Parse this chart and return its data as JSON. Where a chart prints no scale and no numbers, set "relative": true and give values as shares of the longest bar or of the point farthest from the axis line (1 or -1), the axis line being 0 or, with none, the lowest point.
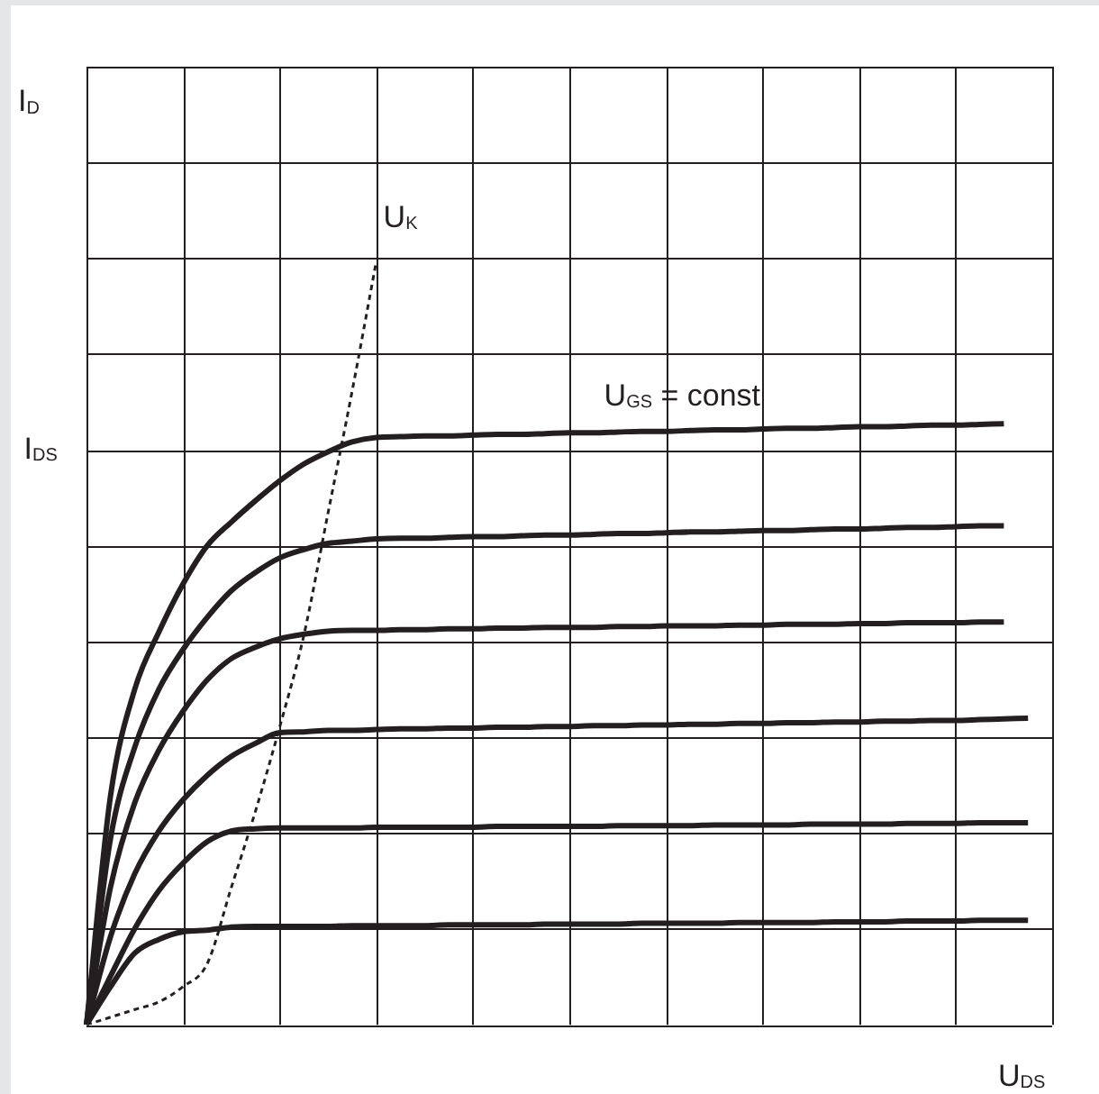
{
  "chart_data": {
    "type": "line",
    "relative": true,
    "grid": true,
    "legend": false,
    "marker": "none",
    "line_style": "solid",
    "ylabel": "I$_{D}$",
    "xlabel": "U$_{DS}$",
    "annotations": [
      "U$_{GS}$ = const",
      "I$_{DS}$"
    ],
    "categories": [
      null,
      null,
      null,
      null,
      null,
      null,
      null,
      null,
      null,
      null,
      null,
      null,
      null,
      null,
      null,
      null,
      null,
      null,
      null,
      null,
      null,
      null,
      null,
      null,
      null,
      null,
      null,
      null,
      null,
      null,
      null,
      null,
      null,
      null,
      null,
      null,
      null,
      null,
      null,
      null,
      null
    ],
    "series": [
      {
        "color": "#231f20",
        "values": [
          0,
          0.301,
          0.44,
          0.515,
          0.578,
          0.628,
          0.659,
          0.687,
          0.713,
          0.735,
          0.751,
          0.764,
          0.77,
          0.771,
          0.772,
          0.772,
          0.773,
          0.774,
          0.774,
          0.775,
          0.776,
          0.776,
          0.777,
          0.778,
          0.778,
          0.779,
          0.78,
          0.78,
          0.781,
          0.782,
          0.782,
          0.783,
          0.784,
          0.784,
          0.785,
          0.786,
          0.786,
          0.787,
          0.788,
          null,
          null
        ]
      },
      {
        "color": "#231f20",
        "values": [
          0,
          0.245,
          0.364,
          0.44,
          0.492,
          0.534,
          0.569,
          0.593,
          0.612,
          0.623,
          0.631,
          0.634,
          0.637,
          0.638,
          0.638,
          0.639,
          0.64,
          0.64,
          0.641,
          0.642,
          0.642,
          0.643,
          0.644,
          0.644,
          0.645,
          0.646,
          0.646,
          0.647,
          0.648,
          0.648,
          0.649,
          0.65,
          0.65,
          0.651,
          0.652,
          0.652,
          0.653,
          0.654,
          0.654,
          null,
          null
        ]
      },
      {
        "color": "#231f20",
        "values": [
          0,
          0.181,
          0.291,
          0.36,
          0.411,
          0.452,
          0.48,
          0.495,
          0.506,
          0.512,
          0.516,
          0.517,
          0.517,
          0.518,
          0.518,
          0.519,
          0.519,
          0.52,
          0.52,
          0.521,
          0.521,
          0.521,
          0.522,
          0.522,
          0.523,
          0.523,
          0.523,
          0.524,
          0.524,
          0.525,
          0.525,
          0.525,
          0.526,
          0.526,
          0.527,
          0.527,
          0.527,
          0.528,
          0.528,
          null,
          null
        ]
      },
      {
        "color": "#231f20",
        "values": [
          0,
          0.116,
          0.198,
          0.254,
          0.295,
          0.327,
          0.352,
          0.369,
          0.383,
          0.384,
          0.386,
          0.386,
          0.387,
          0.388,
          0.388,
          0.389,
          0.389,
          0.39,
          0.39,
          0.391,
          0.391,
          0.392,
          0.392,
          0.393,
          0.393,
          0.394,
          0.394,
          0.395,
          0.395,
          0.396,
          0.396,
          0.397,
          0.397,
          0.398,
          0.398,
          0.399,
          0.399,
          0.4,
          0.401,
          0.402,
          null
        ]
      },
      {
        "color": "#231f20",
        "values": [
          0,
          0.064,
          0.126,
          0.176,
          0.212,
          0.24,
          0.254,
          0.257,
          0.258,
          0.258,
          0.258,
          0.258,
          0.259,
          0.259,
          0.259,
          0.259,
          0.259,
          0.26,
          0.26,
          0.26,
          0.26,
          0.26,
          0.261,
          0.261,
          0.261,
          0.261,
          0.262,
          0.262,
          0.262,
          0.262,
          0.263,
          0.263,
          0.263,
          0.263,
          0.264,
          0.264,
          0.264,
          0.265,
          0.265,
          0.265,
          null
        ]
      },
      {
        "color": "#231f20",
        "values": [
          0,
          0.05,
          0.094,
          0.112,
          0.122,
          0.124,
          0.128,
          0.129,
          0.129,
          0.129,
          0.129,
          0.13,
          0.13,
          0.13,
          0.13,
          0.131,
          0.131,
          0.131,
          0.131,
          0.132,
          0.132,
          0.132,
          0.132,
          0.133,
          0.133,
          0.133,
          0.133,
          0.134,
          0.134,
          0.134,
          0.134,
          0.135,
          0.135,
          0.135,
          0.136,
          0.136,
          0.136,
          0.137,
          0.137,
          0.137,
          null
        ]
      },
      {
        "name": "U$_{K}$",
        "color": "#231f20",
        "line_style": "dashed",
        "values": [
          0,
          0.01,
          0.02,
          0.03,
          0.05,
          0.08,
          0.18,
          0.28,
          0.39,
          0.51,
          0.67,
          0.83,
          1.0,
          null,
          null,
          null,
          null,
          null,
          null,
          null,
          null,
          null,
          null,
          null,
          null,
          null,
          null,
          null,
          null,
          null,
          null,
          null,
          null,
          null,
          null,
          null,
          null,
          null,
          null,
          null,
          null
        ]
      }
    ]
  }
}
